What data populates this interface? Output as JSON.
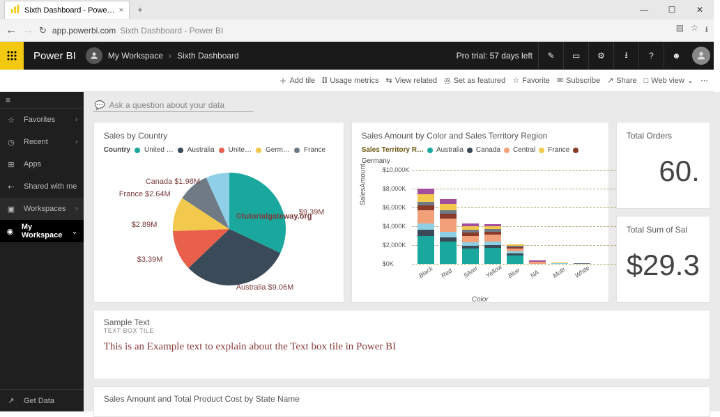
{
  "window": {
    "tab_title": "Sixth Dashboard - Powe…"
  },
  "address": {
    "host": "app.powerbi.com",
    "tail": "Sixth Dashboard - Power BI"
  },
  "header": {
    "brand": "Power BI",
    "breadcrumb_workspace": "My Workspace",
    "breadcrumb_dashboard": "Sixth Dashboard",
    "trial": "Pro trial: 57 days left"
  },
  "toolbar": {
    "add_tile": "Add tile",
    "usage": "Usage metrics",
    "view_related": "View related",
    "set_featured": "Set as featured",
    "favorite": "Favorite",
    "subscribe": "Subscribe",
    "share": "Share",
    "web_view": "Web view"
  },
  "sidebar": {
    "favorites": "Favorites",
    "recent": "Recent",
    "apps": "Apps",
    "shared": "Shared with me",
    "workspaces": "Workspaces",
    "my_workspace": "My Workspace",
    "get_data": "Get Data"
  },
  "ask_placeholder": "Ask a question about your data",
  "pie": {
    "title": "Sales by Country",
    "legend_label": "Country",
    "legend": [
      {
        "label": "United …",
        "color": "#1aa89e"
      },
      {
        "label": "Australia",
        "color": "#3a4a58"
      },
      {
        "label": "Unite…",
        "color": "#e8604c"
      },
      {
        "label": "Germ…",
        "color": "#f2c94c"
      },
      {
        "label": "France",
        "color": "#6f7a85"
      }
    ],
    "slices": [
      {
        "value": 9.39,
        "label": "$9.39M",
        "color": "#1aa89e"
      },
      {
        "value": 9.06,
        "label": "Australia $9.06M",
        "color": "#3a4a58"
      },
      {
        "value": 3.39,
        "label": "$3.39M",
        "color": "#e8604c"
      },
      {
        "value": 2.89,
        "label": "$2.89M",
        "color": "#f2c94c"
      },
      {
        "value": 2.64,
        "label": "France $2.64M",
        "color": "#6f7a85"
      },
      {
        "value": 1.98,
        "label": "Canada $1.98M",
        "color": "#8fd0e8"
      }
    ],
    "watermark": "©tutorialgateway.org"
  },
  "bar": {
    "title": "Sales Amount by Color and Sales Territory Region",
    "legend_label": "Sales Territory R…",
    "legend": [
      {
        "label": "Australia",
        "color": "#1aa89e"
      },
      {
        "label": "Canada",
        "color": "#3a4a58"
      },
      {
        "label": "Central",
        "color": "#f2a07a"
      },
      {
        "label": "France",
        "color": "#f2c94c"
      },
      {
        "label": "Germany",
        "color": "#8a3a2a"
      }
    ],
    "ylabel": "SalesAmount",
    "xlabel": "Color",
    "ymax": 10000,
    "yticks": [
      "$0K",
      "$2,000K",
      "$4,000K",
      "$6,000K",
      "$8,000K",
      "$10,000K"
    ],
    "categories": [
      "Black",
      "Red",
      "Silver",
      "Yellow",
      "Blue",
      "NA",
      "Multi",
      "White"
    ],
    "stacks": [
      [
        {
          "c": "#1aa89e",
          "v": 3000
        },
        {
          "c": "#3a4a58",
          "v": 600
        },
        {
          "c": "#8fcfe3",
          "v": 700
        },
        {
          "c": "#f2a07a",
          "v": 1400
        },
        {
          "c": "#8a3a2a",
          "v": 500
        },
        {
          "c": "#6f7a85",
          "v": 400
        },
        {
          "c": "#f2c94c",
          "v": 800
        },
        {
          "c": "#a24f9e",
          "v": 600
        }
      ],
      [
        {
          "c": "#1aa89e",
          "v": 2400
        },
        {
          "c": "#3a4a58",
          "v": 400
        },
        {
          "c": "#8fcfe3",
          "v": 600
        },
        {
          "c": "#f2a07a",
          "v": 1400
        },
        {
          "c": "#8a3a2a",
          "v": 500
        },
        {
          "c": "#6f7a85",
          "v": 400
        },
        {
          "c": "#f2c94c",
          "v": 700
        },
        {
          "c": "#a24f9e",
          "v": 500
        }
      ],
      [
        {
          "c": "#1aa89e",
          "v": 1600
        },
        {
          "c": "#3a4a58",
          "v": 300
        },
        {
          "c": "#8fcfe3",
          "v": 400
        },
        {
          "c": "#f2a07a",
          "v": 700
        },
        {
          "c": "#8a3a2a",
          "v": 300
        },
        {
          "c": "#6f7a85",
          "v": 300
        },
        {
          "c": "#f2c94c",
          "v": 400
        },
        {
          "c": "#a24f9e",
          "v": 300
        }
      ],
      [
        {
          "c": "#1aa89e",
          "v": 1700
        },
        {
          "c": "#3a4a58",
          "v": 300
        },
        {
          "c": "#8fcfe3",
          "v": 400
        },
        {
          "c": "#f2a07a",
          "v": 700
        },
        {
          "c": "#8a3a2a",
          "v": 300
        },
        {
          "c": "#6f7a85",
          "v": 300
        },
        {
          "c": "#f2c94c",
          "v": 300
        },
        {
          "c": "#a24f9e",
          "v": 200
        }
      ],
      [
        {
          "c": "#1aa89e",
          "v": 900
        },
        {
          "c": "#3a4a58",
          "v": 200
        },
        {
          "c": "#8fcfe3",
          "v": 200
        },
        {
          "c": "#f2a07a",
          "v": 300
        },
        {
          "c": "#8a3a2a",
          "v": 150
        },
        {
          "c": "#6f7a85",
          "v": 150
        },
        {
          "c": "#f2c94c",
          "v": 150
        }
      ],
      [
        {
          "c": "#f2a07a",
          "v": 250
        },
        {
          "c": "#a24f9e",
          "v": 100
        }
      ],
      [
        {
          "c": "#8fcfe3",
          "v": 80
        },
        {
          "c": "#f2c94c",
          "v": 70
        }
      ],
      [
        {
          "c": "#6f7a85",
          "v": 60
        }
      ]
    ]
  },
  "kpi1": {
    "title": "Total Orders",
    "value": "60."
  },
  "kpi2": {
    "title": "Total Sum of Sal",
    "value": "$29.3"
  },
  "textbox": {
    "title": "Sample Text",
    "sub": "TEXT BOX TILE",
    "body": "This is an Example text to explain about the Text box tile in Power BI"
  },
  "bottom_tile_title": "Sales Amount and Total Product Cost by State Name"
}
